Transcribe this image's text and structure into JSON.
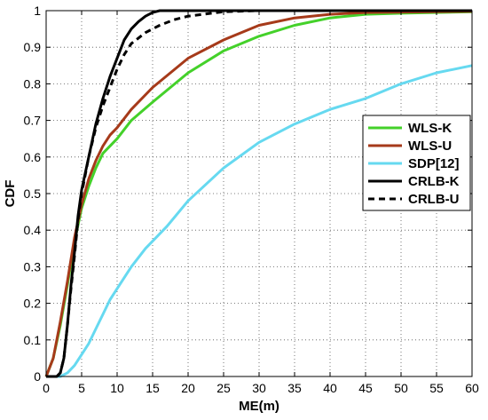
{
  "chart_data": {
    "type": "line",
    "xlabel": "ME(m)",
    "ylabel": "CDF",
    "xlim": [
      0,
      60
    ],
    "ylim": [
      0,
      1
    ],
    "xticks": [
      0,
      5,
      10,
      15,
      20,
      25,
      30,
      35,
      40,
      45,
      50,
      55,
      60
    ],
    "yticks": [
      0,
      0.1,
      0.2,
      0.3,
      0.4,
      0.5,
      0.6,
      0.7,
      0.8,
      0.9,
      1
    ],
    "grid": true,
    "legend_position": "right",
    "series": [
      {
        "name": "WLS-K",
        "color": "#44d12a",
        "dash": "solid",
        "points": [
          [
            0,
            0
          ],
          [
            1,
            0.05
          ],
          [
            2,
            0.14
          ],
          [
            3,
            0.25
          ],
          [
            4,
            0.37
          ],
          [
            5,
            0.46
          ],
          [
            6,
            0.52
          ],
          [
            7,
            0.57
          ],
          [
            8,
            0.61
          ],
          [
            9,
            0.63
          ],
          [
            10,
            0.65
          ],
          [
            12,
            0.7
          ],
          [
            15,
            0.75
          ],
          [
            20,
            0.83
          ],
          [
            25,
            0.89
          ],
          [
            30,
            0.93
          ],
          [
            35,
            0.96
          ],
          [
            40,
            0.98
          ],
          [
            45,
            0.99
          ],
          [
            50,
            0.993
          ],
          [
            60,
            0.997
          ]
        ]
      },
      {
        "name": "WLS-U",
        "color": "#a63a1a",
        "dash": "solid",
        "points": [
          [
            0,
            0
          ],
          [
            1,
            0.05
          ],
          [
            2,
            0.15
          ],
          [
            3,
            0.26
          ],
          [
            4,
            0.38
          ],
          [
            5,
            0.47
          ],
          [
            6,
            0.54
          ],
          [
            7,
            0.59
          ],
          [
            8,
            0.63
          ],
          [
            9,
            0.66
          ],
          [
            10,
            0.68
          ],
          [
            12,
            0.73
          ],
          [
            15,
            0.79
          ],
          [
            20,
            0.87
          ],
          [
            25,
            0.92
          ],
          [
            30,
            0.96
          ],
          [
            35,
            0.98
          ],
          [
            40,
            0.99
          ],
          [
            45,
            0.995
          ],
          [
            60,
            0.998
          ]
        ]
      },
      {
        "name": "SDP[12]",
        "color": "#66d9f0",
        "dash": "solid",
        "points": [
          [
            0,
            0
          ],
          [
            1,
            0
          ],
          [
            2,
            0
          ],
          [
            3,
            0.01
          ],
          [
            4,
            0.03
          ],
          [
            5,
            0.06
          ],
          [
            6,
            0.09
          ],
          [
            7,
            0.13
          ],
          [
            8,
            0.17
          ],
          [
            9,
            0.21
          ],
          [
            10,
            0.24
          ],
          [
            12,
            0.3
          ],
          [
            14,
            0.35
          ],
          [
            15,
            0.37
          ],
          [
            17,
            0.41
          ],
          [
            20,
            0.48
          ],
          [
            25,
            0.57
          ],
          [
            30,
            0.64
          ],
          [
            35,
            0.69
          ],
          [
            40,
            0.73
          ],
          [
            45,
            0.76
          ],
          [
            50,
            0.8
          ],
          [
            55,
            0.83
          ],
          [
            60,
            0.85
          ]
        ]
      },
      {
        "name": "CRLB-K",
        "color": "#000000",
        "dash": "solid",
        "points": [
          [
            0,
            0
          ],
          [
            1.5,
            0
          ],
          [
            2,
            0.01
          ],
          [
            2.5,
            0.05
          ],
          [
            3,
            0.14
          ],
          [
            3.5,
            0.25
          ],
          [
            4,
            0.34
          ],
          [
            4.5,
            0.44
          ],
          [
            5,
            0.51
          ],
          [
            6,
            0.6
          ],
          [
            7,
            0.69
          ],
          [
            8,
            0.76
          ],
          [
            9,
            0.82
          ],
          [
            10,
            0.87
          ],
          [
            11,
            0.92
          ],
          [
            12,
            0.95
          ],
          [
            13,
            0.97
          ],
          [
            14,
            0.985
          ],
          [
            15,
            0.995
          ],
          [
            16,
            1
          ],
          [
            60,
            1
          ]
        ]
      },
      {
        "name": "CRLB-U",
        "color": "#000000",
        "dash": "dashed",
        "points": [
          [
            0,
            0
          ],
          [
            1.5,
            0
          ],
          [
            2,
            0.01
          ],
          [
            2.5,
            0.05
          ],
          [
            3,
            0.14
          ],
          [
            3.5,
            0.24
          ],
          [
            4,
            0.33
          ],
          [
            4.5,
            0.43
          ],
          [
            5,
            0.5
          ],
          [
            6,
            0.6
          ],
          [
            7,
            0.68
          ],
          [
            8,
            0.74
          ],
          [
            9,
            0.79
          ],
          [
            10,
            0.84
          ],
          [
            11,
            0.88
          ],
          [
            12,
            0.91
          ],
          [
            14,
            0.94
          ],
          [
            16,
            0.96
          ],
          [
            18,
            0.975
          ],
          [
            20,
            0.985
          ],
          [
            25,
            0.997
          ],
          [
            30,
            1
          ],
          [
            60,
            1
          ]
        ]
      }
    ]
  }
}
